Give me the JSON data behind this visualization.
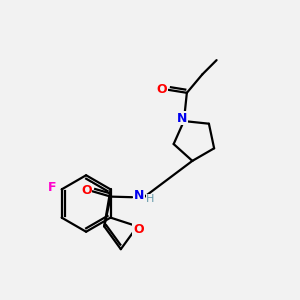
{
  "background_color": "#f2f2f2",
  "bond_color": "#000000",
  "atom_colors": {
    "O": "#ff0000",
    "N": "#0000ee",
    "F": "#ff00cc",
    "H": "#6699aa",
    "C": "#000000"
  },
  "figsize": [
    3.0,
    3.0
  ],
  "dpi": 100
}
